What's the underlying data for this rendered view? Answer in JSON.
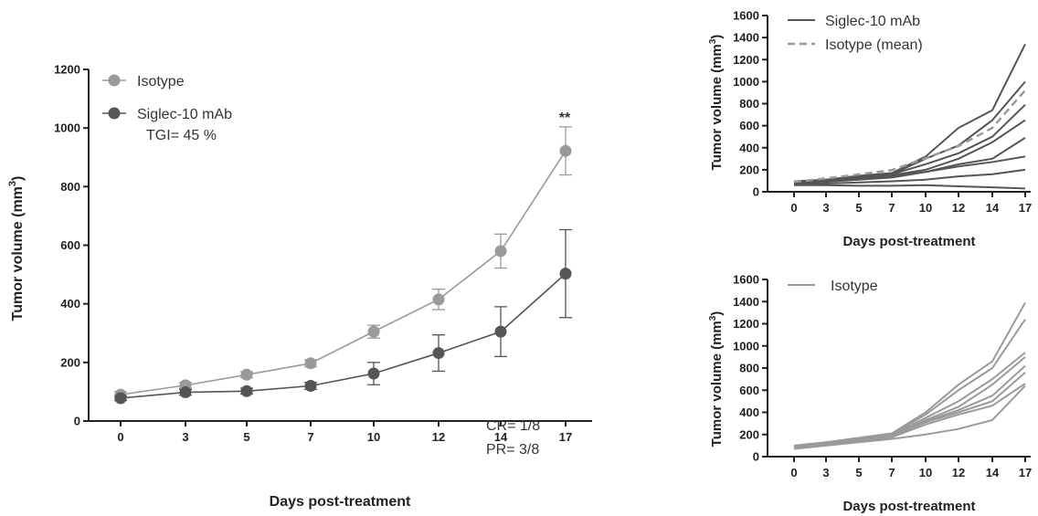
{
  "chart_data": [
    {
      "type": "line",
      "x": [
        0,
        3,
        5,
        7,
        10,
        12,
        14,
        17
      ],
      "xticklabels": [
        "0",
        "3",
        "5",
        "7",
        "10",
        "12",
        "14",
        "17"
      ],
      "xlabel": "Days post-treatment",
      "ylabel": "Tumor volume (mm",
      "ylabel_sup": "3",
      "ylabel_end": ")",
      "ylim": [
        0,
        1200
      ],
      "yticks": [
        0,
        200,
        400,
        600,
        800,
        1000,
        1200
      ],
      "legend_position": "top-left",
      "series": [
        {
          "name": "Isotype",
          "color": "#9a9a9a",
          "values": [
            90,
            122,
            158,
            197,
            305,
            415,
            580,
            922
          ],
          "errors": [
            10,
            10,
            10,
            12,
            22,
            35,
            58,
            82
          ]
        },
        {
          "name": "Siglec-10 mAb",
          "color": "#555555",
          "values": [
            78,
            98,
            102,
            120,
            162,
            232,
            305,
            503
          ],
          "errors": [
            8,
            10,
            10,
            12,
            38,
            62,
            85,
            150
          ]
        }
      ],
      "annotations": {
        "tgi": "TGI= 45 %",
        "significance": "**",
        "cr": "CR= 1/8",
        "pr": "PR= 3/8"
      }
    },
    {
      "type": "line",
      "x": [
        0,
        3,
        5,
        7,
        10,
        12,
        14,
        17
      ],
      "xticklabels": [
        "0",
        "3",
        "5",
        "7",
        "10",
        "12",
        "14",
        "17"
      ],
      "xlabel": "Days post-treatment",
      "ylabel": "Tumor volume (mm",
      "ylabel_sup": "3",
      "ylabel_end": ")",
      "ylim": [
        0,
        1600
      ],
      "yticks": [
        0,
        200,
        400,
        600,
        800,
        1000,
        1200,
        1400,
        1600
      ],
      "legend_position": "top-left",
      "legend": [
        "Siglec-10 mAb",
        "Isotype (mean)"
      ],
      "line_color": "#555555",
      "mean_color": "#9a9a9a",
      "mean_values": [
        90,
        122,
        158,
        197,
        305,
        415,
        580,
        922
      ],
      "individual_series": [
        [
          95,
          110,
          145,
          170,
          320,
          580,
          740,
          1340
        ],
        [
          85,
          100,
          130,
          160,
          300,
          420,
          650,
          1000
        ],
        [
          90,
          105,
          140,
          160,
          250,
          350,
          500,
          790
        ],
        [
          80,
          110,
          140,
          150,
          200,
          300,
          450,
          650
        ],
        [
          75,
          95,
          120,
          145,
          180,
          250,
          300,
          490
        ],
        [
          70,
          90,
          110,
          130,
          180,
          230,
          270,
          320
        ],
        [
          65,
          75,
          85,
          95,
          110,
          140,
          160,
          200
        ],
        [
          60,
          60,
          55,
          55,
          60,
          50,
          40,
          30
        ]
      ]
    },
    {
      "type": "line",
      "x": [
        0,
        3,
        5,
        7,
        10,
        12,
        14,
        17
      ],
      "xticklabels": [
        "0",
        "3",
        "5",
        "7",
        "10",
        "12",
        "14",
        "17"
      ],
      "xlabel": "Days post-treatment",
      "ylabel": "Tumor volume (mm",
      "ylabel_sup": "3",
      "ylabel_end": ")",
      "ylim": [
        0,
        1600
      ],
      "yticks": [
        0,
        200,
        400,
        600,
        800,
        1000,
        1200,
        1400,
        1600
      ],
      "legend_position": "top-left",
      "legend": [
        "Isotype"
      ],
      "line_color": "#9a9a9a",
      "individual_series": [
        [
          100,
          130,
          170,
          210,
          400,
          650,
          860,
          1390
        ],
        [
          95,
          125,
          165,
          200,
          380,
          600,
          800,
          1240
        ],
        [
          90,
          120,
          160,
          195,
          350,
          500,
          700,
          940
        ],
        [
          85,
          115,
          150,
          185,
          330,
          450,
          650,
          900
        ],
        [
          80,
          110,
          145,
          180,
          320,
          420,
          550,
          820
        ],
        [
          85,
          115,
          155,
          190,
          310,
          400,
          500,
          760
        ],
        [
          75,
          105,
          140,
          175,
          290,
          380,
          460,
          660
        ],
        [
          70,
          100,
          130,
          160,
          200,
          250,
          330,
          640
        ]
      ]
    }
  ]
}
